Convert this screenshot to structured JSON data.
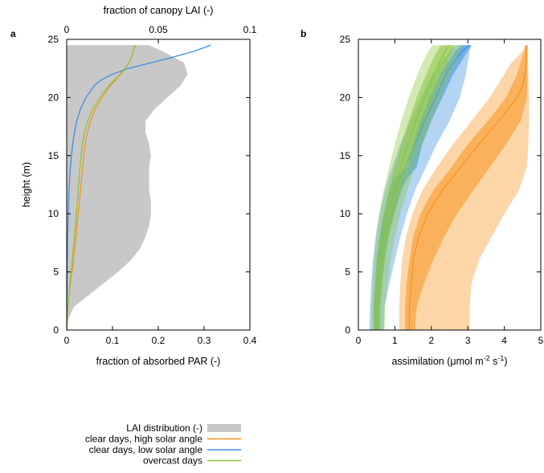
{
  "chart_data": [
    {
      "panel_label": "a",
      "type": "line",
      "xlabel": "fraction of absorbed PAR (-)",
      "x2label": "fraction of canopy LAI (-)",
      "ylabel": "height (m)",
      "xlim": [
        0,
        0.4
      ],
      "x2lim": [
        0,
        0.1
      ],
      "ylim": [
        0,
        25
      ],
      "xticks": [
        "0",
        "0.1",
        "0.2",
        "0.3",
        "0.4"
      ],
      "x2ticks": [
        "0",
        "0.05",
        "0.1"
      ],
      "yticks": [
        "0",
        "5",
        "10",
        "15",
        "20",
        "25"
      ],
      "lai_distribution": {
        "name": "LAI distribution (-)",
        "color": "#c8c8c8",
        "height": [
          0,
          1,
          2,
          3,
          4,
          5,
          6,
          7,
          8,
          9,
          10,
          11,
          12,
          13,
          14,
          15,
          16,
          17,
          18,
          19,
          20,
          21,
          22,
          23,
          24,
          24.5
        ],
        "lai_fraction": [
          0,
          0.001,
          0.004,
          0.012,
          0.02,
          0.028,
          0.035,
          0.04,
          0.043,
          0.045,
          0.046,
          0.046,
          0.045,
          0.045,
          0.045,
          0.046,
          0.045,
          0.043,
          0.043,
          0.048,
          0.055,
          0.062,
          0.066,
          0.064,
          0.052,
          0.045
        ]
      },
      "series": [
        {
          "name": "clear days, high solar angle",
          "color": "#f7931e",
          "height": [
            0,
            2,
            4,
            6,
            8,
            10,
            12,
            14,
            16,
            17,
            18,
            19,
            20,
            21,
            22,
            22.5,
            23,
            23.5,
            24,
            24.5
          ],
          "absorbed_par": [
            0,
            0.003,
            0.008,
            0.015,
            0.02,
            0.025,
            0.03,
            0.035,
            0.04,
            0.045,
            0.052,
            0.062,
            0.077,
            0.095,
            0.118,
            0.128,
            0.136,
            0.142,
            0.146,
            0.148
          ]
        },
        {
          "name": "clear days, low solar angle",
          "color": "#3a8fdf",
          "height": [
            0,
            4,
            8,
            12,
            14,
            16,
            17,
            18,
            19,
            20,
            21,
            21.5,
            22,
            22.5,
            23,
            23.5,
            24,
            24.5
          ],
          "absorbed_par": [
            0,
            0.001,
            0.002,
            0.005,
            0.008,
            0.013,
            0.017,
            0.022,
            0.03,
            0.042,
            0.06,
            0.075,
            0.1,
            0.135,
            0.185,
            0.235,
            0.28,
            0.315
          ]
        },
        {
          "name": "overcast days",
          "color": "#8cc63f",
          "height": [
            0,
            2,
            4,
            6,
            8,
            10,
            12,
            14,
            16,
            17,
            18,
            19,
            20,
            21,
            22,
            22.5,
            23,
            23.5,
            24,
            24.5
          ],
          "absorbed_par": [
            0,
            0.003,
            0.007,
            0.012,
            0.017,
            0.021,
            0.025,
            0.029,
            0.034,
            0.039,
            0.046,
            0.056,
            0.072,
            0.092,
            0.116,
            0.127,
            0.136,
            0.142,
            0.146,
            0.15
          ]
        }
      ]
    },
    {
      "panel_label": "b",
      "type": "area",
      "xlabel": "assimilation (μmol m-2 s-1)",
      "ylabel": "",
      "xlim": [
        0,
        5
      ],
      "ylim": [
        0,
        25
      ],
      "xticks": [
        "0",
        "1",
        "2",
        "3",
        "4",
        "5"
      ],
      "yticks": [
        "0",
        "5",
        "10",
        "15",
        "20",
        "25"
      ],
      "series": [
        {
          "name": "clear days, low solar angle",
          "color": "#3a8fdf",
          "height": [
            0,
            2,
            4,
            6,
            8,
            10,
            12,
            13,
            14,
            16,
            18,
            20,
            22,
            23,
            24,
            24.5
          ],
          "mean": [
            0.5,
            0.5,
            0.55,
            0.6,
            0.68,
            0.82,
            1.0,
            1.12,
            1.28,
            1.55,
            1.82,
            2.12,
            2.4,
            2.6,
            2.85,
            3.05
          ],
          "inner": [
            [
              0.42,
              0.58
            ],
            [
              0.42,
              0.58
            ],
            [
              0.46,
              0.64
            ],
            [
              0.5,
              0.72
            ],
            [
              0.58,
              0.82
            ],
            [
              0.7,
              0.98
            ],
            [
              0.86,
              1.18
            ],
            [
              0.96,
              1.32
            ],
            [
              1.35,
              1.6
            ],
            [
              1.5,
              1.75
            ],
            [
              1.7,
              2.0
            ],
            [
              1.95,
              2.3
            ],
            [
              2.25,
              2.6
            ],
            [
              2.45,
              2.8
            ],
            [
              2.65,
              3.0
            ],
            [
              2.85,
              3.1
            ]
          ],
          "outer": [
            [
              0.3,
              0.7
            ],
            [
              0.32,
              0.72
            ],
            [
              0.35,
              0.85
            ],
            [
              0.4,
              1.0
            ],
            [
              0.47,
              1.15
            ],
            [
              0.58,
              1.33
            ],
            [
              0.73,
              1.55
            ],
            [
              0.82,
              1.7
            ],
            [
              0.93,
              1.85
            ],
            [
              1.15,
              2.15
            ],
            [
              1.42,
              2.5
            ],
            [
              1.72,
              2.78
            ],
            [
              2.02,
              2.95
            ],
            [
              2.25,
              3.0
            ],
            [
              2.5,
              3.05
            ],
            [
              2.7,
              3.1
            ]
          ]
        },
        {
          "name": "clear days, high solar angle",
          "color": "#f7931e",
          "height": [
            0,
            2,
            4,
            6,
            8,
            10,
            12,
            14,
            16,
            18,
            20,
            21,
            22,
            23,
            24,
            24.5
          ],
          "mean": [
            1.4,
            1.4,
            1.45,
            1.5,
            1.65,
            1.9,
            2.3,
            2.8,
            3.3,
            3.85,
            4.35,
            4.5,
            4.57,
            4.6,
            4.6,
            4.6
          ],
          "inner": [
            [
              1.28,
              1.55
            ],
            [
              1.28,
              1.6
            ],
            [
              1.32,
              1.8
            ],
            [
              1.4,
              2.05
            ],
            [
              1.5,
              2.35
            ],
            [
              1.7,
              2.7
            ],
            [
              2.05,
              3.15
            ],
            [
              2.55,
              3.6
            ],
            [
              3.0,
              4.05
            ],
            [
              3.55,
              4.45
            ],
            [
              4.05,
              4.62
            ],
            [
              4.2,
              4.63
            ],
            [
              4.35,
              4.63
            ],
            [
              4.45,
              4.63
            ],
            [
              4.55,
              4.63
            ],
            [
              4.58,
              4.63
            ]
          ],
          "outer": [
            [
              1.12,
              3.05
            ],
            [
              1.12,
              3.05
            ],
            [
              1.15,
              3.1
            ],
            [
              1.2,
              3.3
            ],
            [
              1.3,
              3.65
            ],
            [
              1.48,
              4.0
            ],
            [
              1.75,
              4.4
            ],
            [
              2.15,
              4.62
            ],
            [
              2.6,
              4.66
            ],
            [
              3.1,
              4.68
            ],
            [
              3.6,
              4.68
            ],
            [
              3.8,
              4.67
            ],
            [
              4.0,
              4.66
            ],
            [
              4.2,
              4.65
            ],
            [
              4.5,
              4.65
            ],
            [
              4.58,
              4.65
            ]
          ]
        },
        {
          "name": "overcast days",
          "color": "#8cc63f",
          "height": [
            0,
            2,
            4,
            6,
            8,
            10,
            12,
            14,
            16,
            18,
            20,
            22,
            23,
            24,
            24.5
          ],
          "mean": [
            0.5,
            0.5,
            0.55,
            0.6,
            0.7,
            0.82,
            0.98,
            1.16,
            1.36,
            1.58,
            1.82,
            2.08,
            2.22,
            2.38,
            2.48
          ],
          "inner": [
            [
              0.43,
              0.6
            ],
            [
              0.43,
              0.6
            ],
            [
              0.47,
              0.66
            ],
            [
              0.51,
              0.72
            ],
            [
              0.59,
              0.83
            ],
            [
              0.69,
              0.97
            ],
            [
              0.83,
              1.15
            ],
            [
              1.0,
              1.34
            ],
            [
              1.18,
              1.55
            ],
            [
              1.38,
              1.78
            ],
            [
              1.6,
              2.04
            ],
            [
              1.86,
              2.3
            ],
            [
              2.0,
              2.44
            ],
            [
              2.16,
              2.58
            ],
            [
              2.26,
              2.66
            ]
          ],
          "outer": [
            [
              0.36,
              0.72
            ],
            [
              0.36,
              0.73
            ],
            [
              0.39,
              0.8
            ],
            [
              0.42,
              0.88
            ],
            [
              0.49,
              1.0
            ],
            [
              0.57,
              1.15
            ],
            [
              0.69,
              1.34
            ],
            [
              0.84,
              1.54
            ],
            [
              1.0,
              1.76
            ],
            [
              1.18,
              2.0
            ],
            [
              1.38,
              2.26
            ],
            [
              1.62,
              2.52
            ],
            [
              1.76,
              2.66
            ],
            [
              1.92,
              2.78
            ],
            [
              2.02,
              2.84
            ]
          ]
        }
      ]
    }
  ],
  "legend": {
    "placement": "bottom-center",
    "items": [
      {
        "label": "LAI distribution (-)",
        "kind": "patch",
        "color": "#c8c8c8"
      },
      {
        "label": "clear days, high solar angle",
        "kind": "line",
        "color": "#f7931e"
      },
      {
        "label": "clear days, low solar angle",
        "kind": "line",
        "color": "#3a8fdf"
      },
      {
        "label": "overcast days",
        "kind": "line",
        "color": "#8cc63f"
      }
    ]
  }
}
